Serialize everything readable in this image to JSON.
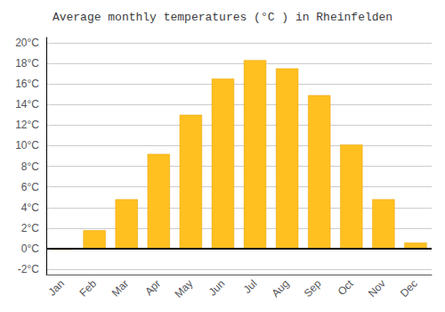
{
  "chart_data": {
    "type": "bar",
    "title": "Average monthly temperatures (°C ) in Rheinfelden",
    "categories": [
      "Jan",
      "Feb",
      "Mar",
      "Apr",
      "May",
      "Jun",
      "Jul",
      "Aug",
      "Sep",
      "Oct",
      "Nov",
      "Dec"
    ],
    "values": [
      -0.1,
      1.8,
      4.8,
      9.2,
      13.0,
      16.5,
      18.3,
      17.5,
      14.9,
      10.1,
      4.8,
      0.6
    ],
    "color": "#FFC020",
    "ylim": [
      -2.5,
      20.5
    ],
    "yticks": [
      {
        "value": -2,
        "label": "-2°C"
      },
      {
        "value": 0,
        "label": "0°C"
      },
      {
        "value": 2,
        "label": "2°C"
      },
      {
        "value": 4,
        "label": "4°C"
      },
      {
        "value": 6,
        "label": "6°C"
      },
      {
        "value": 8,
        "label": "8°C"
      },
      {
        "value": 10,
        "label": "10°C"
      },
      {
        "value": 12,
        "label": "12°C"
      },
      {
        "value": 14,
        "label": "14°C"
      },
      {
        "value": 16,
        "label": "16°C"
      },
      {
        "value": 18,
        "label": "18°C"
      },
      {
        "value": 20,
        "label": "20°C"
      }
    ],
    "grid": true
  }
}
